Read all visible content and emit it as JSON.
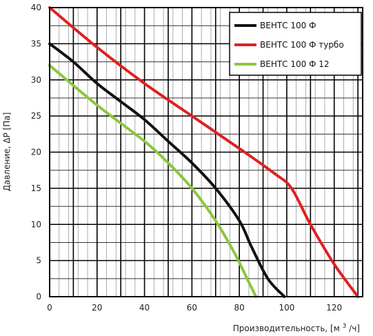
{
  "chart_data": {
    "type": "line",
    "xlabel": "Производительность, [м",
    "xlabel_sup": "3",
    "xlabel_end": "/ч]",
    "ylabel": "Давление, ΔP [Па]",
    "xlim": [
      0,
      132
    ],
    "ylim": [
      0,
      40
    ],
    "x_ticks": [
      "0",
      "20",
      "40",
      "60",
      "80",
      "100",
      "120"
    ],
    "y_ticks": [
      "0",
      "5",
      "10",
      "15",
      "20",
      "25",
      "30",
      "35",
      "40"
    ],
    "grid": true,
    "legend_position": "top-right",
    "series": [
      {
        "name": "ВЕНТС 100 Ф",
        "color": "#111111",
        "points": [
          [
            0,
            35
          ],
          [
            10,
            32.5
          ],
          [
            20,
            29.5
          ],
          [
            30,
            27
          ],
          [
            40,
            24.5
          ],
          [
            50,
            21.5
          ],
          [
            60,
            18.5
          ],
          [
            70,
            15
          ],
          [
            80,
            10.5
          ],
          [
            85,
            7
          ],
          [
            92,
            2.5
          ],
          [
            99,
            0
          ]
        ]
      },
      {
        "name": "ВЕНТС 100 Ф турбо",
        "color": "#e02020",
        "points": [
          [
            0,
            40
          ],
          [
            20,
            34.5
          ],
          [
            40,
            29.5
          ],
          [
            60,
            25
          ],
          [
            80,
            20.5
          ],
          [
            95,
            17
          ],
          [
            102,
            15
          ],
          [
            110,
            10
          ],
          [
            120,
            4.5
          ],
          [
            130,
            0
          ]
        ]
      },
      {
        "name": "ВЕНТС 100 Ф 12",
        "color": "#8cc63e",
        "points": [
          [
            0,
            32
          ],
          [
            20,
            26.5
          ],
          [
            40,
            21.5
          ],
          [
            50,
            18.5
          ],
          [
            60,
            15
          ],
          [
            70,
            10.5
          ],
          [
            78,
            6
          ],
          [
            84,
            2
          ],
          [
            87,
            0
          ]
        ]
      }
    ]
  }
}
